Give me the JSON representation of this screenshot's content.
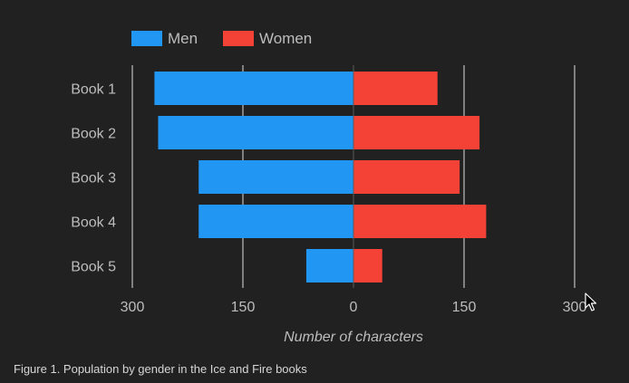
{
  "chart_data": {
    "type": "bar",
    "orientation": "horizontal-diverging",
    "categories": [
      "Book 1",
      "Book 2",
      "Book 3",
      "Book 4",
      "Book 5"
    ],
    "series": [
      {
        "name": "Men",
        "values": [
          270,
          265,
          210,
          210,
          64
        ],
        "color": "#2196f3",
        "direction": "left"
      },
      {
        "name": "Women",
        "values": [
          114,
          171,
          144,
          180,
          39
        ],
        "color": "#f44336",
        "direction": "right"
      }
    ],
    "x_ticks": [
      "300",
      "150",
      "0",
      "150",
      "300"
    ],
    "xlim": [
      -300,
      300
    ],
    "xlabel": "Number of characters",
    "ylabel": "",
    "legend_position": "top-left",
    "grid": true
  },
  "caption": "Figure 1. Population by gender in the Ice and Fire books",
  "colors": {
    "background": "#212121",
    "text": "#bdbdbd",
    "grid": "#e0e0e0"
  }
}
